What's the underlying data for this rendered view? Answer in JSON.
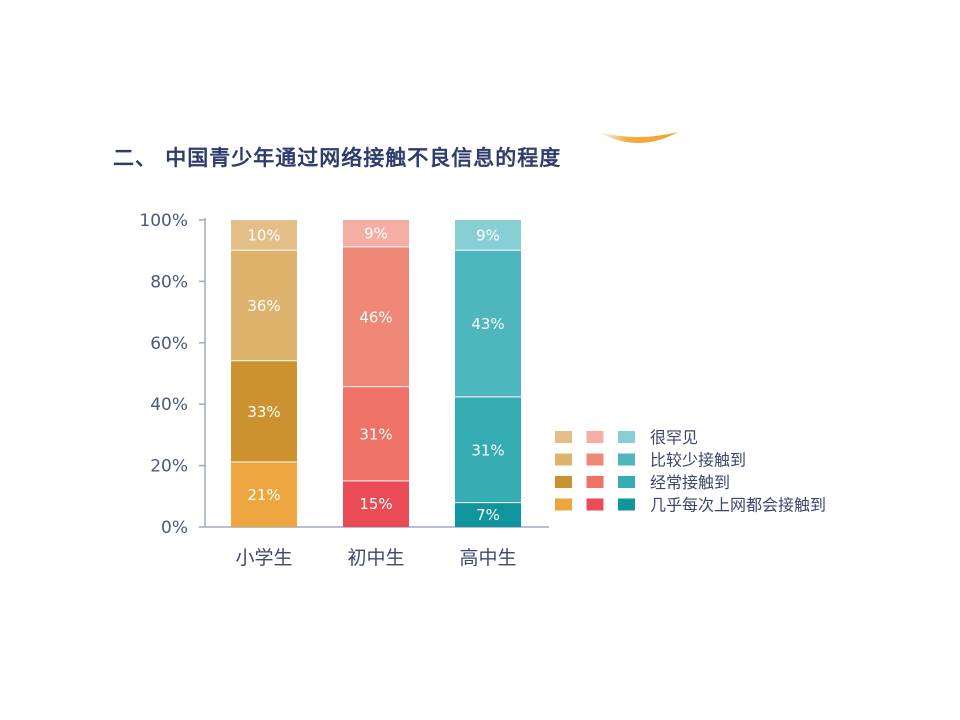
{
  "chart_data": {
    "type": "bar",
    "stacked": "percent",
    "title": "二、 中国青少年通过网络接触不良信息的程度",
    "categories": [
      "小学生",
      "初中生",
      "高中生"
    ],
    "series": [
      {
        "name": "几乎每次上网都会接触到",
        "values": [
          21,
          15,
          7
        ],
        "colors": [
          "#EDA63F",
          "#E94C56",
          "#0F959B"
        ]
      },
      {
        "name": "经常接触到",
        "values": [
          33,
          31,
          31
        ],
        "colors": [
          "#CD9230",
          "#EE7266",
          "#35ABB2"
        ]
      },
      {
        "name": "比较少接触到",
        "values": [
          36,
          46,
          43
        ],
        "colors": [
          "#DDB36D",
          "#F08878",
          "#4DB7BD"
        ]
      },
      {
        "name": "很罕见",
        "values": [
          10,
          9,
          9
        ],
        "colors": [
          "#E3BE86",
          "#F4AEA4",
          "#87CFD4"
        ]
      }
    ],
    "unit": "%",
    "yticks": [
      0,
      20,
      40,
      60,
      80,
      100
    ],
    "ylim": [
      0,
      100
    ],
    "grid": false,
    "legend_position": "right"
  }
}
